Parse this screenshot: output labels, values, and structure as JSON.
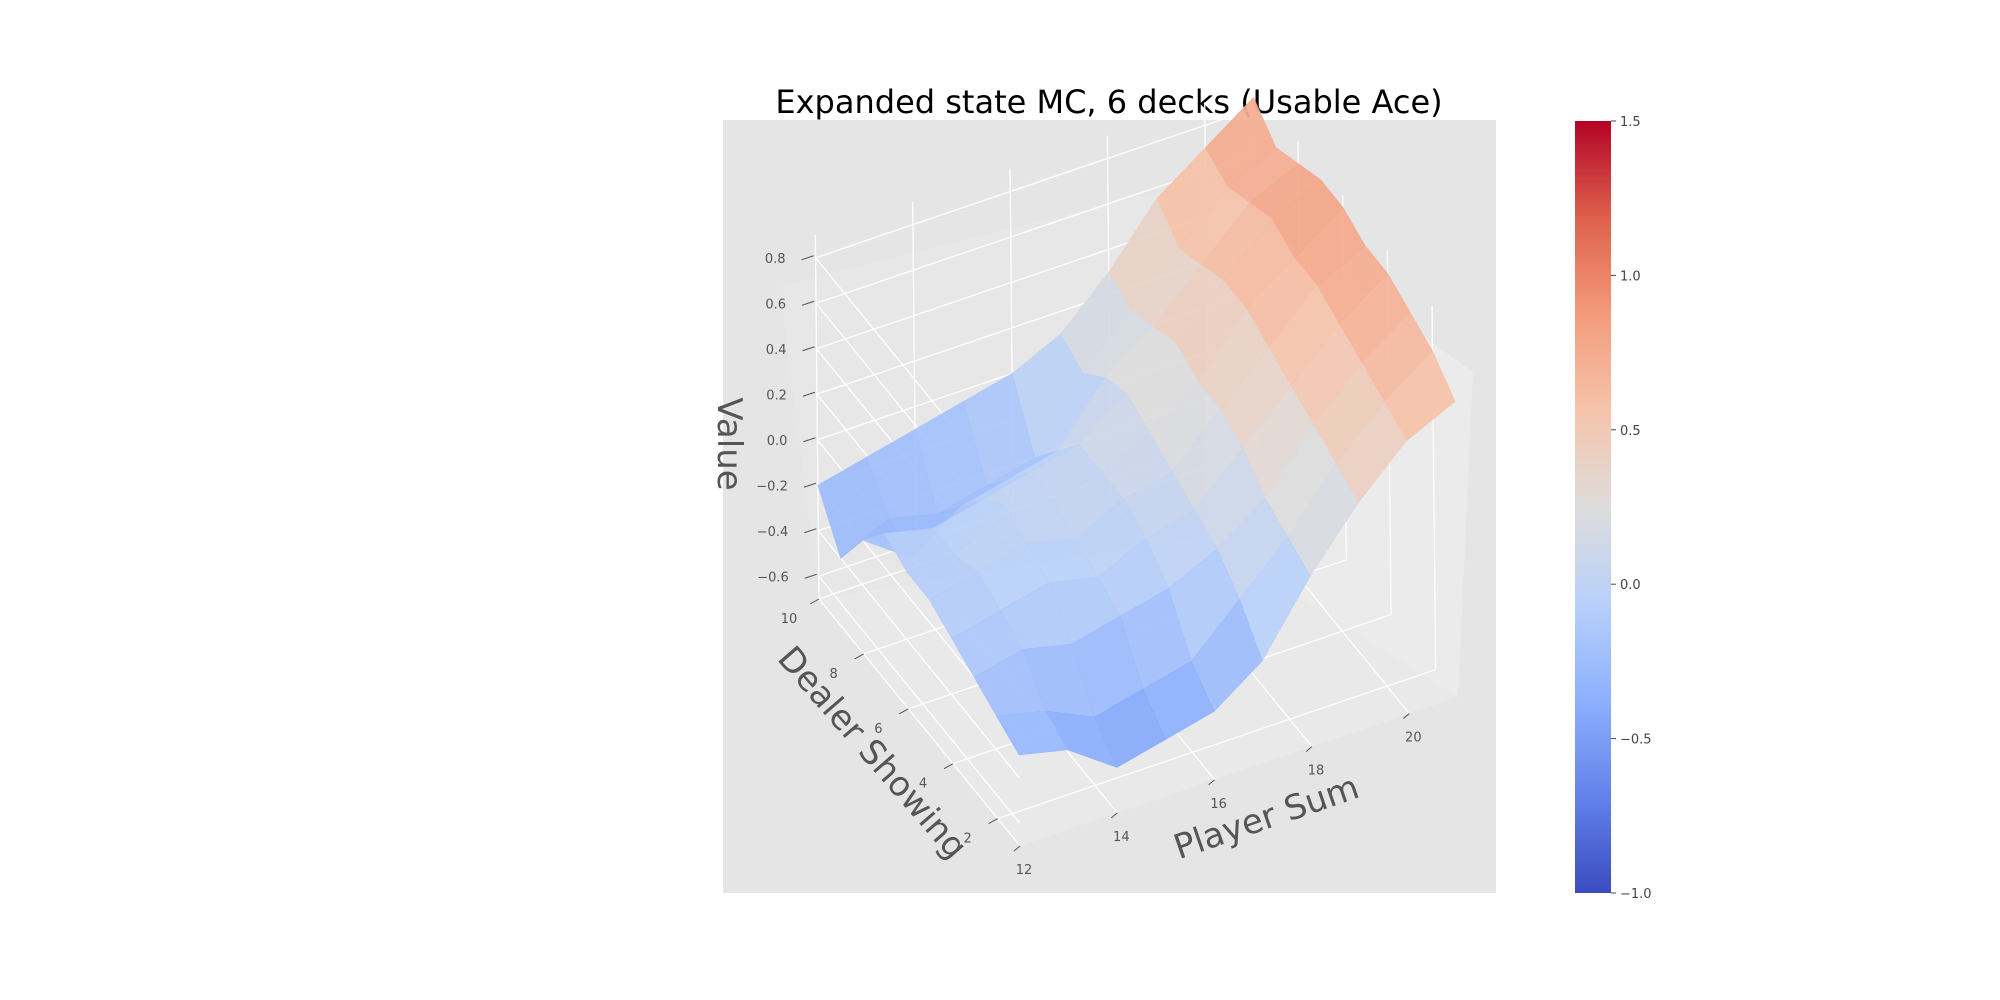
{
  "chart_data": {
    "type": "surface3d",
    "title": "Expanded state MC, 6 decks (Usable Ace)",
    "xlabel": "Player Sum",
    "ylabel": "Dealer Showing",
    "zlabel": "Value",
    "x": [
      12,
      13,
      14,
      15,
      16,
      17,
      18,
      19,
      20,
      21
    ],
    "y": [
      1,
      2,
      3,
      4,
      5,
      6,
      7,
      8,
      9,
      10
    ],
    "x_ticks": [
      "12",
      "14",
      "16",
      "18",
      "20"
    ],
    "y_ticks": [
      "2",
      "4",
      "6",
      "8",
      "10"
    ],
    "z_ticks": [
      "−0.6",
      "−0.4",
      "−0.2",
      "0.0",
      "0.2",
      "0.4",
      "0.6",
      "0.8"
    ],
    "zlim": [
      -0.7,
      0.9
    ],
    "colormap": "coolwarm",
    "color_range": [
      -1.0,
      1.5
    ],
    "colorbar_ticks": [
      "−1.0",
      "−0.5",
      "0.0",
      "0.5",
      "1.0",
      "1.5"
    ],
    "grid": true,
    "z": [
      [
        -0.3,
        -0.35,
        -0.5,
        -0.45,
        -0.4,
        -0.25,
        0.05,
        0.3,
        0.5,
        0.6
      ],
      [
        -0.25,
        -0.3,
        -0.4,
        -0.35,
        -0.3,
        -0.1,
        0.1,
        0.35,
        0.55,
        0.7
      ],
      [
        -0.2,
        -0.15,
        -0.2,
        -0.15,
        -0.1,
        0.0,
        0.15,
        0.4,
        0.6,
        0.75
      ],
      [
        -0.15,
        -0.1,
        -0.05,
        -0.1,
        0.0,
        0.05,
        0.25,
        0.45,
        0.65,
        0.8
      ],
      [
        -0.1,
        -0.05,
        0.0,
        -0.05,
        0.05,
        0.1,
        0.3,
        0.5,
        0.7,
        0.8
      ],
      [
        -0.1,
        -0.1,
        0.05,
        0.0,
        0.05,
        0.15,
        0.3,
        0.55,
        0.7,
        0.85
      ],
      [
        -0.05,
        -0.1,
        -0.05,
        0.0,
        0.05,
        0.2,
        0.35,
        0.55,
        0.75,
        0.85
      ],
      [
        -0.2,
        -0.35,
        -0.2,
        -0.15,
        -0.1,
        0.15,
        0.3,
        0.5,
        0.7,
        0.8
      ],
      [
        -0.4,
        -0.3,
        -0.35,
        -0.3,
        -0.25,
        0.05,
        0.25,
        0.45,
        0.65,
        0.75
      ],
      [
        -0.2,
        -0.15,
        -0.1,
        -0.05,
        0.0,
        0.1,
        0.3,
        0.55,
        0.7,
        0.85
      ]
    ]
  }
}
